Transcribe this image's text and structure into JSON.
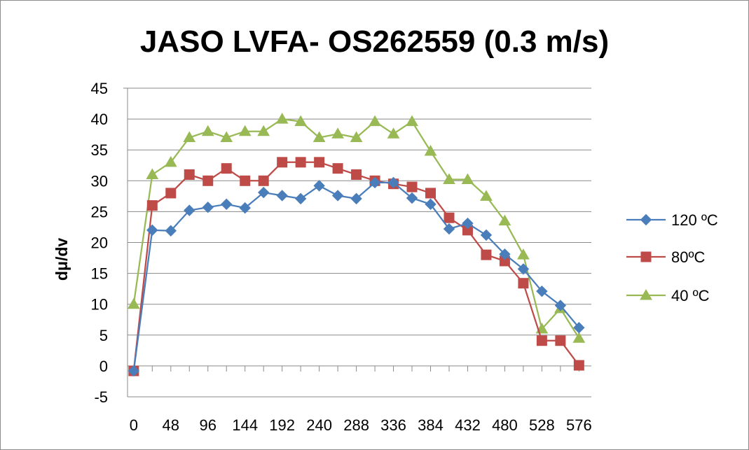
{
  "chart_data": {
    "type": "line",
    "title": "JASO LVFA- OS262559 (0.3 m/s)",
    "xlabel": "",
    "ylabel": "dμ/dv",
    "x": [
      0,
      24,
      48,
      72,
      96,
      120,
      144,
      168,
      192,
      216,
      240,
      264,
      288,
      312,
      336,
      360,
      384,
      408,
      432,
      456,
      480,
      504,
      528,
      552,
      576
    ],
    "x_ticks": [
      0,
      48,
      96,
      144,
      192,
      240,
      288,
      336,
      384,
      432,
      480,
      528,
      576
    ],
    "xlim": [
      -8,
      592
    ],
    "ylim": [
      -5,
      45
    ],
    "y_ticks": [
      -5,
      0,
      5,
      10,
      15,
      20,
      25,
      30,
      35,
      40,
      45
    ],
    "grid": "horizontal",
    "legend": "right",
    "series": [
      {
        "name": "120 ºC",
        "color": "#4a7ebb",
        "marker": "diamond",
        "values": [
          -0.8,
          22,
          21.9,
          25.2,
          25.7,
          26.2,
          25.6,
          28.1,
          27.6,
          27.1,
          29.2,
          27.6,
          27.1,
          29.7,
          29.7,
          27.2,
          26.2,
          22.2,
          23.1,
          21.2,
          18.1,
          15.7,
          12.1,
          9.8,
          6.2
        ]
      },
      {
        "name": "80ºC",
        "color": "#be4b48",
        "marker": "square",
        "values": [
          -0.8,
          26,
          28,
          31,
          30,
          32,
          30,
          30,
          33,
          33,
          33,
          32,
          31,
          30,
          29.5,
          29,
          28,
          24,
          22,
          18,
          17,
          13.4,
          4.1,
          4.1,
          0.1
        ]
      },
      {
        "name": "40 ºC",
        "color": "#98b954",
        "marker": "triangle",
        "values": [
          10,
          31,
          33,
          37,
          38,
          37,
          38,
          38,
          40,
          39.6,
          37,
          37.6,
          37,
          39.6,
          37.6,
          39.6,
          34.8,
          30.2,
          30.2,
          27.5,
          23.5,
          18,
          6,
          9.3,
          4.5
        ]
      }
    ]
  }
}
